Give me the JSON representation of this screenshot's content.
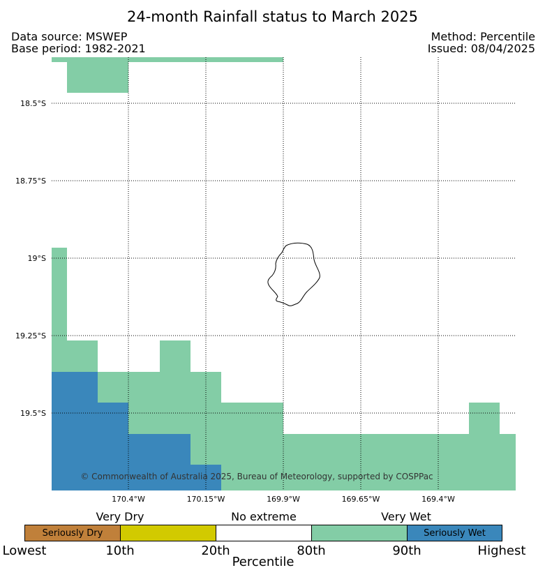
{
  "title": "24-month Rainfall status to March 2025",
  "data_source": "Data source: MSWEP",
  "base_period": "Base period: 1982-2021",
  "method": "Method: Percentile",
  "issued": "Issued: 08/04/2025",
  "lat_labels": [
    "18.5°S",
    "18.75°S",
    "19°S",
    "19.25°S",
    "19.5°S"
  ],
  "lon_labels": [
    "170.4°W",
    "170.15°W",
    "169.9°W",
    "169.65°W",
    "169.4°W"
  ],
  "copyright": "© Commonwealth of Australia 2025, Bureau of Meteorology, supported by COSPPac",
  "colorbar": {
    "group_labels": [
      "Very Dry",
      "No extreme",
      "Very Wet"
    ],
    "categories": [
      {
        "label": "Seriously Dry",
        "color": "#c0803a"
      },
      {
        "label": "",
        "color": "#d2ca00"
      },
      {
        "label": "",
        "color": "#ffffff"
      },
      {
        "label": "",
        "color": "#83cda6"
      },
      {
        "label": "Seriously Wet",
        "color": "#3a87bb"
      }
    ],
    "ticks": [
      "Lowest",
      "10th",
      "20th",
      "80th",
      "90th",
      "Highest"
    ],
    "axis_label": "Percentile"
  },
  "colors": {
    "very_wet": "#83cda6",
    "seriously_wet": "#3a87bb",
    "coastline": "#000000"
  }
}
